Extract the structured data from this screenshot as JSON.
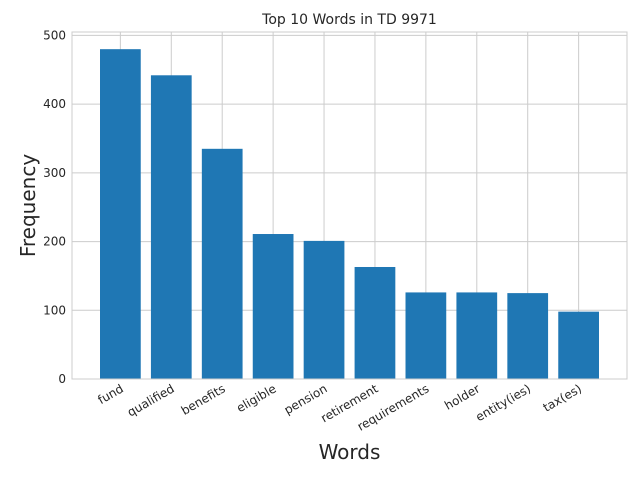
{
  "chart_data": {
    "type": "bar",
    "title": "Top 10 Words in TD 9971",
    "xlabel": "Words",
    "ylabel": "Frequency",
    "categories": [
      "fund",
      "qualified",
      "benefits",
      "eligible",
      "pension",
      "retirement",
      "requirements",
      "holder",
      "entity(ies)",
      "tax(es)"
    ],
    "values": [
      480,
      442,
      335,
      211,
      201,
      163,
      126,
      126,
      125,
      98
    ],
    "ylim": [
      0,
      505
    ],
    "yticks": [
      0,
      100,
      200,
      300,
      400,
      500
    ],
    "grid": true,
    "bar_color": "#1f77b4",
    "grid_color": "#cccccc"
  }
}
